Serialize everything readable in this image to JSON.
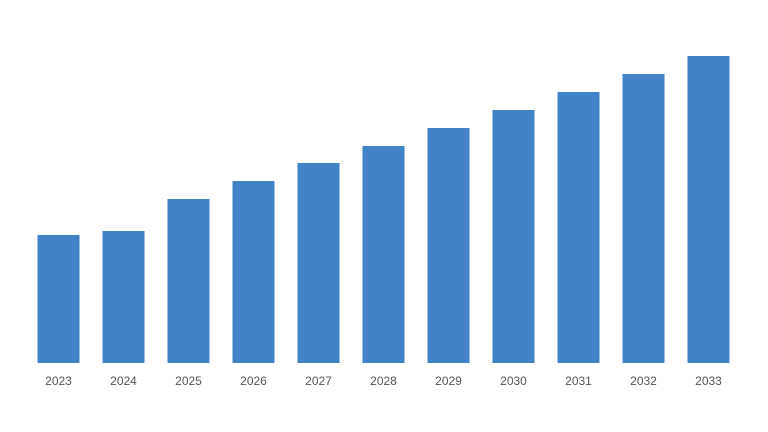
{
  "chart_data": {
    "type": "bar",
    "categories": [
      "2023",
      "2024",
      "2025",
      "2026",
      "2027",
      "2028",
      "2029",
      "2030",
      "2031",
      "2032",
      "2033"
    ],
    "values": [
      128,
      132,
      164,
      182,
      200,
      217,
      235,
      253,
      271,
      289,
      307
    ],
    "color": "#4282c6"
  }
}
